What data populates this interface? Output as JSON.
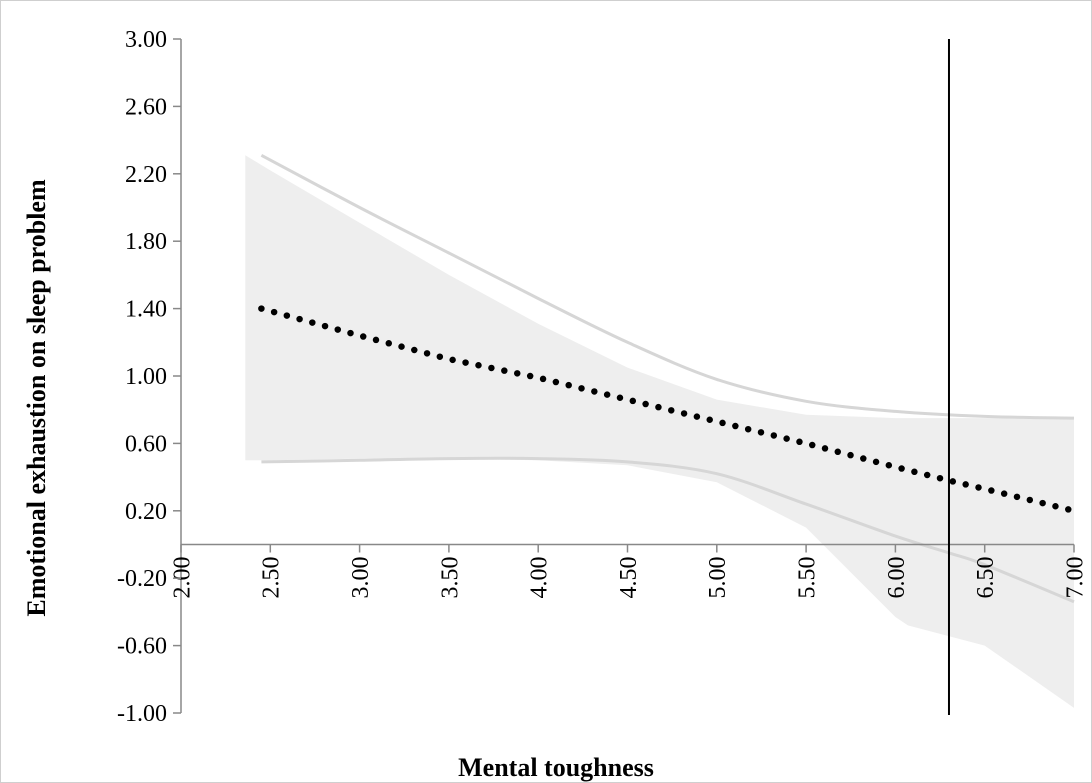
{
  "chart_data": {
    "type": "line",
    "title": "",
    "xlabel": "Mental toughness",
    "ylabel": "Emotional exhaustion on sleep problem",
    "xlim": [
      2.0,
      7.0
    ],
    "ylim": [
      -1.0,
      3.0
    ],
    "x_ticks": [
      "2.00",
      "2.50",
      "3.00",
      "3.50",
      "4.00",
      "4.50",
      "5.00",
      "5.50",
      "6.00",
      "6.50",
      "7.00"
    ],
    "y_ticks": [
      "3.00",
      "2.60",
      "2.20",
      "1.80",
      "1.40",
      "1.00",
      "0.60",
      "0.20",
      "-0.20",
      "-0.60",
      "-1.00"
    ],
    "grid": false,
    "legend": "none",
    "colors": {
      "estimate": "#000000",
      "ci_line": "#d6d6d6",
      "ci_band": "#eeeeee",
      "threshold": "#000000",
      "axis": "#888888"
    },
    "estimate": {
      "x": [
        2.45,
        3.0,
        3.5,
        4.0,
        4.5,
        5.0,
        5.5,
        6.0,
        6.3,
        6.5,
        7.0
      ],
      "y": [
        1.4,
        1.24,
        1.1,
        0.99,
        0.86,
        0.73,
        0.6,
        0.46,
        0.38,
        0.33,
        0.2
      ]
    },
    "upper_ci": {
      "x": [
        2.45,
        3.0,
        3.5,
        4.0,
        4.5,
        5.0,
        5.5,
        6.0,
        6.5,
        7.0
      ],
      "y": [
        2.31,
        2.0,
        1.73,
        1.46,
        1.2,
        0.98,
        0.85,
        0.79,
        0.76,
        0.75
      ]
    },
    "lower_ci": {
      "x": [
        2.45,
        3.0,
        3.5,
        4.0,
        4.5,
        5.0,
        5.5,
        6.0,
        6.3,
        6.5,
        7.0
      ],
      "y": [
        0.49,
        0.5,
        0.51,
        0.51,
        0.49,
        0.42,
        0.24,
        0.05,
        -0.05,
        -0.12,
        -0.34
      ]
    },
    "band": {
      "x": [
        2.36,
        2.5,
        3.0,
        3.5,
        4.0,
        4.5,
        5.0,
        5.5,
        6.0,
        6.07,
        6.5,
        7.0
      ],
      "upper": [
        2.31,
        2.22,
        1.91,
        1.6,
        1.31,
        1.05,
        0.86,
        0.77,
        0.75,
        0.75,
        0.75,
        0.75
      ],
      "lower": [
        0.5,
        0.5,
        0.51,
        0.51,
        0.5,
        0.47,
        0.37,
        0.1,
        -0.43,
        -0.48,
        -0.6,
        -0.97
      ]
    },
    "threshold_x": 6.3
  }
}
